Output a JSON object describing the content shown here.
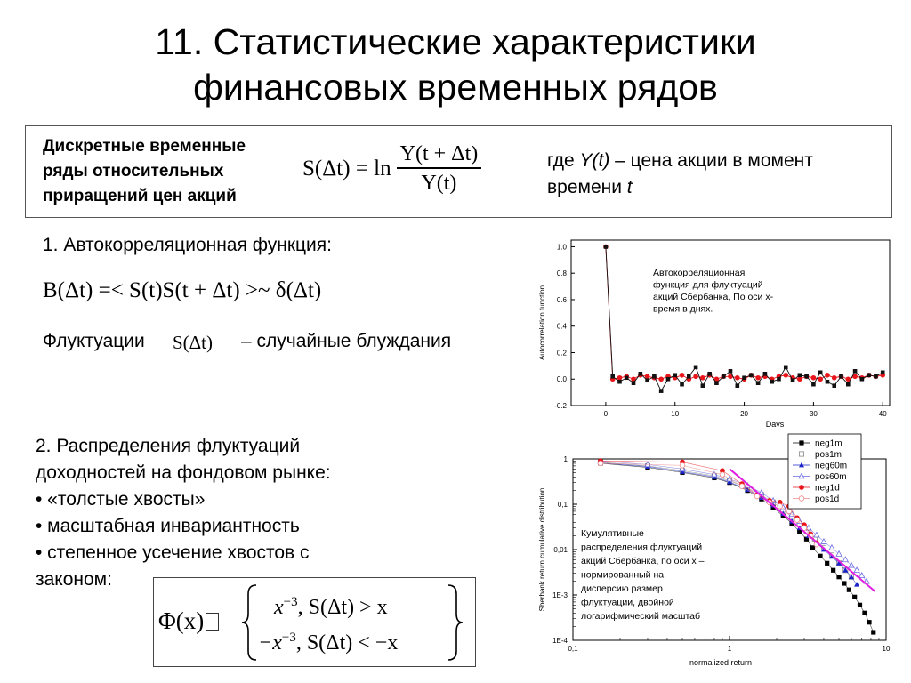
{
  "title": {
    "line1": "11. Статистические характеристики",
    "line2": "финансовых временных рядов"
  },
  "definition": {
    "label_lines": [
      "Дискретные временные",
      "ряды относительных",
      "приращений цен акций"
    ],
    "formula_lhs": "S(Δt) = ln",
    "formula_num": "Y(t + Δt)",
    "formula_den": "Y(t)",
    "where_line1_pre": "где ",
    "where_line1_var": "Y(t)",
    "where_line1_post": " – цена акции в момент",
    "where_line2_pre": "времени ",
    "where_line2_var": "t"
  },
  "section1": {
    "heading": "1. Автокорреляционная функция:",
    "formula": "B(Δt) =< S(t)S(t + Δt) >~ δ(Δt)",
    "fluct_pre": "Флуктуации",
    "fluct_var": "S(Δt)",
    "fluct_post": "– случайные блуждания"
  },
  "section2": {
    "lines": [
      "2. Распределения флуктуаций",
      "доходностей на фондовом рынке:",
      "• «толстые хвосты»",
      "• масштабная инвариантность",
      "• степенное усечение хвостов с",
      "законом:"
    ],
    "formula_lhs": "Φ(x) ",
    "formula_box_glyph": "⃞",
    "case1_expr": "x",
    "case1_exp": "−3",
    "case1_cond": ",  S(Δt) > x",
    "case2_expr": "−x",
    "case2_exp": "−3",
    "case2_cond": ",  S(Δt) < −x"
  },
  "chart_data": [
    {
      "type": "line",
      "ylabel": "Autocorrelation function",
      "xlabel": "Days",
      "xlim": [
        -5,
        41
      ],
      "ylim": [
        -0.2,
        1.05
      ],
      "xticks": [
        0,
        10,
        20,
        30,
        40
      ],
      "yticks": [
        -0.2,
        0.0,
        0.2,
        0.4,
        0.6,
        0.8,
        1.0
      ],
      "ytick_labels": [
        "-0.2",
        "0.0",
        "0.2",
        "0.4",
        "0.6",
        "0.8",
        "1.0"
      ],
      "annotation": [
        "Автокорреляционная",
        "функция для флуктуаций",
        "акций Сбербанка, По оси х-",
        "время в днях."
      ],
      "series": [
        {
          "color": "#e8151b",
          "marker": "circle",
          "x": [
            0,
            1,
            2,
            3,
            4,
            5,
            6,
            7,
            8,
            9,
            10,
            11,
            12,
            13,
            14,
            15,
            16,
            17,
            18,
            19,
            20,
            21,
            22,
            23,
            24,
            25,
            26,
            27,
            28,
            29,
            30,
            31,
            32,
            33,
            34,
            35,
            36,
            37,
            38,
            39,
            40
          ],
          "values": [
            1.0,
            0.0,
            0.01,
            0.02,
            0.0,
            0.03,
            0.02,
            0.01,
            0.0,
            0.02,
            0.01,
            0.03,
            0.0,
            0.02,
            0.01,
            0.03,
            0.0,
            0.02,
            0.02,
            0.01,
            0.0,
            0.03,
            0.01,
            0.02,
            0.0,
            0.02,
            0.03,
            0.01,
            0.0,
            0.02,
            0.01,
            0.0,
            0.03,
            0.01,
            0.02,
            0.0,
            0.02,
            0.01,
            0.03,
            0.02,
            0.03
          ]
        },
        {
          "color": "#111111",
          "marker": "square",
          "x": [
            0,
            1,
            2,
            3,
            4,
            5,
            6,
            7,
            8,
            9,
            10,
            11,
            12,
            13,
            14,
            15,
            16,
            17,
            18,
            19,
            20,
            21,
            22,
            23,
            24,
            25,
            26,
            27,
            28,
            29,
            30,
            31,
            32,
            33,
            34,
            35,
            36,
            37,
            38,
            39,
            40
          ],
          "values": [
            1.0,
            0.02,
            -0.02,
            0.01,
            -0.03,
            0.04,
            -0.01,
            0.02,
            -0.09,
            0.0,
            0.03,
            -0.04,
            0.02,
            0.09,
            -0.05,
            0.04,
            -0.03,
            0.02,
            0.06,
            -0.05,
            0.01,
            0.03,
            -0.03,
            0.04,
            -0.02,
            0.0,
            0.09,
            -0.01,
            0.03,
            0.02,
            -0.04,
            0.05,
            -0.02,
            -0.05,
            0.02,
            -0.04,
            0.06,
            0.0,
            0.03,
            0.02,
            0.05
          ]
        }
      ]
    },
    {
      "type": "scatter",
      "log_x": true,
      "log_y": true,
      "ylabel": "Sberbank return cumulative distribution",
      "xlabel": "normalized return",
      "xlim": [
        0.1,
        10
      ],
      "ylim": [
        0.0001,
        1
      ],
      "xtick_labels": [
        "0,1",
        "1",
        "10"
      ],
      "ytick_labels": [
        "1E-4",
        "1E-3",
        "0,01",
        "0,1",
        "1"
      ],
      "legend_position": "top-right",
      "annotation": [
        "Кумулятивные",
        "распределения флуктуаций",
        "акций Сбербанка, по оси х –",
        "нормированный на",
        "дисперсию размер",
        "флуктуации, двойной",
        "логарифмический масштаб"
      ],
      "fit_line": {
        "color": "#e020e0",
        "x": [
          1.0,
          8.5
        ],
        "values": [
          0.6,
          0.0012
        ]
      },
      "series": [
        {
          "name": "neg1m",
          "color": "#000000",
          "marker": "square-filled",
          "x": [
            0.15,
            0.3,
            0.5,
            0.8,
            1.0,
            1.3,
            1.6,
            1.9,
            2.2,
            2.5,
            2.8,
            3.1,
            3.4,
            3.8,
            4.2,
            4.6,
            5.0,
            5.4,
            5.8,
            6.3,
            6.8,
            7.3,
            7.8,
            8.3
          ],
          "values": [
            0.8,
            0.65,
            0.5,
            0.38,
            0.3,
            0.2,
            0.13,
            0.085,
            0.055,
            0.038,
            0.025,
            0.017,
            0.011,
            0.0072,
            0.005,
            0.0035,
            0.0025,
            0.0018,
            0.0013,
            0.0009,
            0.0006,
            0.0004,
            0.00025,
            0.00015
          ]
        },
        {
          "name": "pos1m",
          "color": "#888888",
          "marker": "square-open",
          "x": [
            0.15,
            0.3,
            0.5,
            0.8,
            1.0,
            1.3,
            1.6,
            1.9,
            2.2,
            2.5,
            2.8,
            3.1,
            3.5,
            4.0,
            4.5,
            5.0,
            5.5,
            6.0
          ],
          "values": [
            0.85,
            0.7,
            0.55,
            0.42,
            0.33,
            0.23,
            0.16,
            0.11,
            0.075,
            0.052,
            0.036,
            0.025,
            0.017,
            0.011,
            0.0075,
            0.005,
            0.0035,
            0.0025
          ]
        },
        {
          "name": "neg60m",
          "color": "#1a24c8",
          "marker": "triangle-filled",
          "x": [
            0.15,
            0.3,
            0.5,
            0.8,
            1.0,
            1.3,
            1.6,
            1.9,
            2.2,
            2.5,
            2.8,
            3.2,
            3.6,
            4.0,
            4.5,
            5.0,
            5.5,
            6.0,
            6.5
          ],
          "values": [
            0.82,
            0.68,
            0.52,
            0.4,
            0.31,
            0.21,
            0.14,
            0.095,
            0.062,
            0.042,
            0.03,
            0.02,
            0.014,
            0.01,
            0.007,
            0.005,
            0.0035,
            0.0025,
            0.0017
          ]
        },
        {
          "name": "pos60m",
          "color": "#6a6ae0",
          "marker": "triangle-open",
          "x": [
            0.15,
            0.3,
            0.5,
            0.8,
            1.0,
            1.3,
            1.6,
            1.9,
            2.2,
            2.5,
            2.8,
            3.2,
            3.6,
            4.0,
            4.5,
            5.0,
            5.5,
            6.0,
            6.5,
            7.0,
            7.5
          ],
          "values": [
            0.9,
            0.75,
            0.6,
            0.45,
            0.36,
            0.26,
            0.18,
            0.12,
            0.085,
            0.06,
            0.042,
            0.03,
            0.021,
            0.015,
            0.011,
            0.008,
            0.006,
            0.0045,
            0.0035,
            0.0027,
            0.002
          ]
        },
        {
          "name": "neg1d",
          "color": "#e8151b",
          "marker": "circle-filled",
          "x": [
            0.15,
            0.5,
            0.9,
            1.2,
            1.5,
            1.8,
            2.1,
            2.4,
            2.7,
            3.0,
            3.3,
            3.6
          ],
          "values": [
            0.9,
            0.85,
            0.55,
            0.28,
            0.16,
            0.12,
            0.11,
            0.09,
            0.05,
            0.035,
            0.022,
            0.014
          ]
        },
        {
          "name": "pos1d",
          "color": "#f08a8a",
          "marker": "circle-open",
          "x": [
            0.15,
            0.5,
            0.9,
            1.2,
            1.5,
            1.8,
            2.1,
            2.4,
            2.7,
            3.0,
            3.3,
            3.6
          ],
          "values": [
            0.8,
            0.72,
            0.45,
            0.25,
            0.15,
            0.11,
            0.09,
            0.07,
            0.045,
            0.03,
            0.02,
            0.013
          ]
        }
      ]
    }
  ]
}
